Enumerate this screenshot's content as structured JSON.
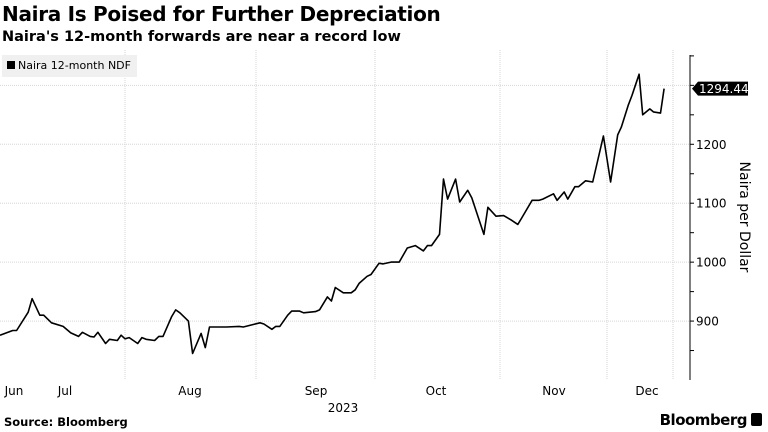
{
  "chart_data": {
    "type": "line",
    "title": "Naira Is Poised for Further Depreciation",
    "subtitle": "Naira's 12-month forwards are near a record low",
    "xlabel": "2023",
    "ylabel": "Naira per Dollar",
    "x_tick_labels": [
      "Jun",
      "Jul",
      "Aug",
      "Sep",
      "Oct",
      "Nov",
      "Dec"
    ],
    "y_tick_labels": [
      "900",
      "1000",
      "1100",
      "1200"
    ],
    "ylim": [
      800,
      1360
    ],
    "grid": true,
    "legend_position": "top-left",
    "last_value_label": "1294.44",
    "series": [
      {
        "name": "Naira 12-month NDF",
        "color": "#000000",
        "x": [
          "2023-06-30",
          "2023-07-03",
          "2023-07-04",
          "2023-07-07",
          "2023-07-08",
          "2023-07-10",
          "2023-07-11",
          "2023-07-13",
          "2023-07-16",
          "2023-07-18",
          "2023-07-20",
          "2023-07-21",
          "2023-07-23",
          "2023-07-24",
          "2023-07-25",
          "2023-07-27",
          "2023-07-28",
          "2023-07-30",
          "2023-07-31",
          "2023-08-01",
          "2023-08-02",
          "2023-08-04",
          "2023-08-05",
          "2023-08-06",
          "2023-08-08",
          "2023-08-09",
          "2023-08-10",
          "2023-08-12",
          "2023-08-13",
          "2023-08-14",
          "2023-08-16",
          "2023-08-17",
          "2023-08-19",
          "2023-08-20",
          "2023-08-21",
          "2023-08-25",
          "2023-08-28",
          "2023-08-29",
          "2023-09-02",
          "2023-09-03",
          "2023-09-05",
          "2023-09-06",
          "2023-09-07",
          "2023-09-09",
          "2023-09-10",
          "2023-09-12",
          "2023-09-13",
          "2023-09-16",
          "2023-09-17",
          "2023-09-19",
          "2023-09-20",
          "2023-09-21",
          "2023-09-23",
          "2023-09-25",
          "2023-09-26",
          "2023-09-27",
          "2023-09-29",
          "2023-09-30",
          "2023-10-02",
          "2023-10-03",
          "2023-10-05",
          "2023-10-07",
          "2023-10-09",
          "2023-10-11",
          "2023-10-13",
          "2023-10-14",
          "2023-10-15",
          "2023-10-17",
          "2023-10-18",
          "2023-10-19",
          "2023-10-21",
          "2023-10-22",
          "2023-10-24",
          "2023-10-25",
          "2023-10-28",
          "2023-10-29",
          "2023-10-31",
          "2023-11-02",
          "2023-11-04",
          "2023-11-06",
          "2023-11-07",
          "2023-11-10",
          "2023-11-12",
          "2023-11-13",
          "2023-11-16",
          "2023-11-17",
          "2023-11-19",
          "2023-11-20",
          "2023-11-22",
          "2023-11-23",
          "2023-11-25",
          "2023-11-27",
          "2023-11-30",
          "2023-12-02",
          "2023-12-04",
          "2023-12-05",
          "2023-12-07",
          "2023-12-08",
          "2023-12-10",
          "2023-12-11",
          "2023-12-13",
          "2023-12-14",
          "2023-12-16",
          "2023-12-17"
        ],
        "values": [
          876,
          884,
          884,
          915,
          938,
          910,
          910,
          897,
          891,
          880,
          874,
          881,
          874,
          873,
          881,
          862,
          869,
          867,
          876,
          870,
          872,
          862,
          872,
          869,
          867,
          874,
          874,
          907,
          919,
          914,
          900,
          845,
          879,
          855,
          890,
          890,
          891,
          890,
          897,
          895,
          886,
          891,
          891,
          910,
          917,
          917,
          914,
          916,
          919,
          941,
          934,
          957,
          948,
          948,
          953,
          964,
          976,
          979,
          998,
          997,
          1000,
          1000,
          1024,
          1028,
          1019,
          1028,
          1028,
          1047,
          1141,
          1107,
          1141,
          1102,
          1122,
          1109,
          1047,
          1093,
          1078,
          1079,
          1072,
          1064,
          1074,
          1105,
          1105,
          1107,
          1116,
          1105,
          1119,
          1107,
          1128,
          1128,
          1138,
          1136,
          1214,
          1136,
          1216,
          1229,
          1267,
          1283,
          1319,
          1250,
          1260,
          1255,
          1253,
          1294.44
        ]
      }
    ]
  },
  "footer": {
    "source": "Source: Bloomberg",
    "logo": "Bloomberg"
  }
}
